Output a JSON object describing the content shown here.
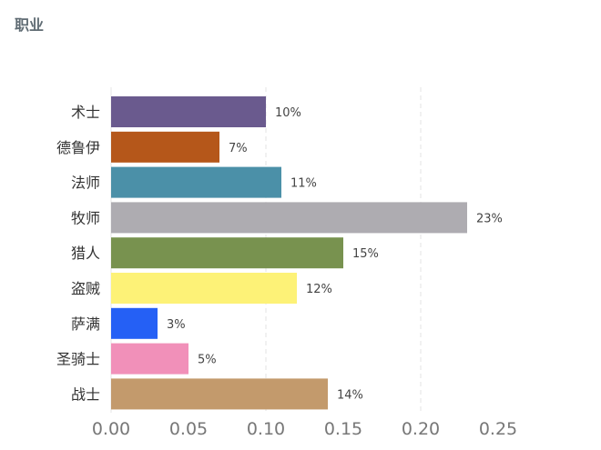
{
  "title": "职业",
  "chart_data": {
    "type": "bar",
    "orientation": "horizontal",
    "title": "职业",
    "categories": [
      "术士",
      "德鲁伊",
      "法师",
      "牧师",
      "猎人",
      "盗贼",
      "萨满",
      "圣骑士",
      "战士"
    ],
    "values": [
      0.1,
      0.07,
      0.11,
      0.23,
      0.15,
      0.12,
      0.03,
      0.05,
      0.14
    ],
    "data_labels": [
      "10%",
      "7%",
      "11%",
      "23%",
      "15%",
      "12%",
      "3%",
      "5%",
      "14%"
    ],
    "colors": [
      "#6a5a8e",
      "#b5571a",
      "#4b90a8",
      "#aeacb1",
      "#78924f",
      "#fdf277",
      "#2560f5",
      "#f190b9",
      "#c39a6c"
    ],
    "xticks": [
      "0.00",
      "0.05",
      "0.10",
      "0.15",
      "0.20",
      "0.25"
    ],
    "xlim": [
      0,
      0.25
    ],
    "grid": "dashed vertical at 0.10 and 0.20",
    "xlabel": "",
    "ylabel": ""
  }
}
